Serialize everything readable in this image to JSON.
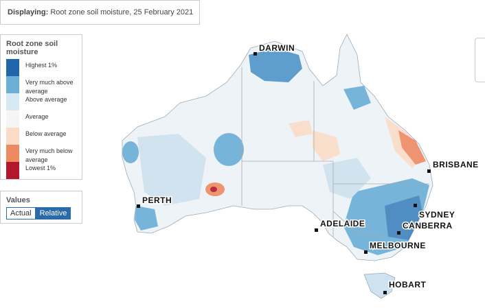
{
  "header": {
    "label": "Displaying:",
    "text": "Root zone soil moisture, 25 February 2021"
  },
  "legend": {
    "title": "Root zone soil moisture",
    "items": [
      {
        "label": "Highest 1%",
        "color": "#2166ac"
      },
      {
        "label": "Very much above average",
        "color": "#6baed6"
      },
      {
        "label": "Above average",
        "color": "#d6e8f3"
      },
      {
        "label": "Average",
        "color": "#f5f5f5"
      },
      {
        "label": "Below average",
        "color": "#fcdcc8"
      },
      {
        "label": "Very much below average",
        "color": "#ee8a62"
      },
      {
        "label": "Lowest 1%",
        "color": "#b2182b"
      }
    ]
  },
  "values_toggle": {
    "title": "Values",
    "options": [
      "Actual",
      "Relative"
    ]
  },
  "cities": [
    "DARWIN",
    "BRISBANE",
    "PERTH",
    "SYDNEY",
    "CANBERRA",
    "ADELAIDE",
    "MELBOURNE",
    "HOBART"
  ]
}
